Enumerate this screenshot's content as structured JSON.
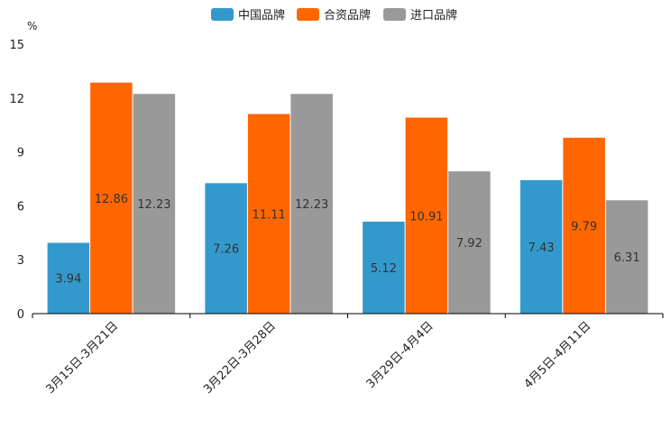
{
  "chart_data": {
    "type": "bar",
    "title": "",
    "xlabel": "",
    "ylabel": "%",
    "ylim": [
      0,
      15
    ],
    "yticks": [
      0,
      3,
      6,
      9,
      12,
      15
    ],
    "grid": false,
    "legend_position": "top-center",
    "categories": [
      "3月15日-3月21日",
      "3月22日-3月28日",
      "3月29日-4月4日",
      "4月5日-4月11日"
    ],
    "series": [
      {
        "name": "中国品牌",
        "color": "#3399CC",
        "values": [
          3.94,
          7.26,
          5.12,
          7.43
        ]
      },
      {
        "name": "合资品牌",
        "color": "#FF6600",
        "values": [
          12.86,
          11.11,
          10.91,
          9.79
        ]
      },
      {
        "name": "进口品牌",
        "color": "#999999",
        "values": [
          12.23,
          12.23,
          7.92,
          6.31
        ]
      }
    ]
  }
}
